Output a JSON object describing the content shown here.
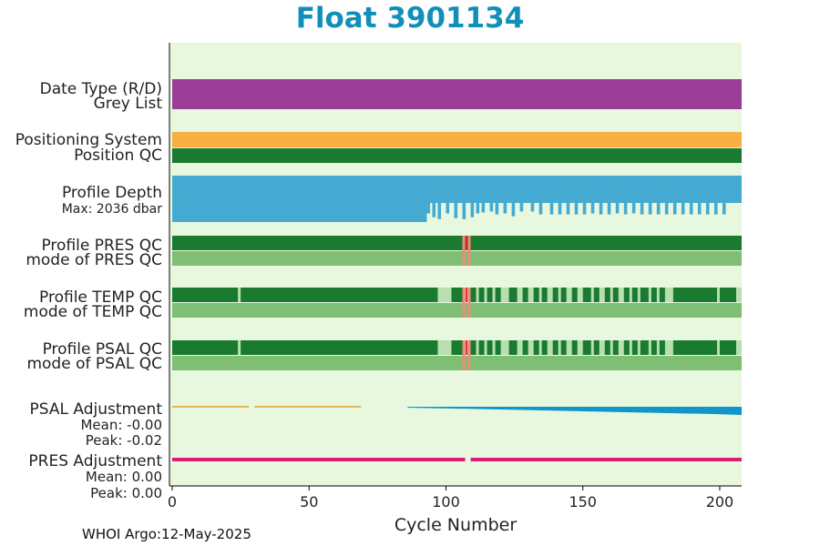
{
  "title": "Float 3901134",
  "footer": "WHOI Argo:12-May-2025",
  "chart_data": {
    "type": "qc-strip",
    "xlabel": "Cycle Number",
    "xlim": [
      -1,
      208
    ],
    "xticks": [
      0,
      50,
      100,
      150,
      200
    ],
    "colors": {
      "background": "#e7f8df",
      "purple": "#993d96",
      "orange": "#f8b042",
      "good": "#1a7a2f",
      "mode": "#7ebf73",
      "light": "#b8dfb0",
      "depth": "#44aad1",
      "bad": "#e8202a",
      "flagged": "#f08a78",
      "pink": "#dc1d74",
      "adjOrange": "#e8a030",
      "adjBlue": "#1096c8"
    },
    "rows": [
      {
        "label": "Date Type (R/D)",
        "color": "#993d96"
      },
      {
        "label": "Grey List",
        "color": ""
      },
      {
        "label": "Positioning System",
        "color": "#f8b042"
      },
      {
        "label": "Position QC",
        "color": "#1a7a2f"
      },
      {
        "label": "Profile Depth",
        "color": "#44aad1"
      },
      {
        "label": "Max: 2036 dbar",
        "color": "#118fb8"
      },
      {
        "label": "Profile PRES QC",
        "color": "#1a7a2f"
      },
      {
        "label": "mode of PRES QC",
        "color": "#7ebf73"
      },
      {
        "label": "Profile TEMP QC",
        "color": "#1a7a2f"
      },
      {
        "label": "mode of TEMP QC",
        "color": "#7ebf73"
      },
      {
        "label": "Profile PSAL QC",
        "color": "#1a7a2f"
      },
      {
        "label": "mode of PSAL QC",
        "color": "#7ebf73"
      }
    ],
    "psal_adjustment": {
      "label": "PSAL Adjustment",
      "mean": "Mean: -0.00",
      "peak": "Peak: -0.02"
    },
    "pres_adjustment": {
      "label": "PRES Adjustment",
      "mean": "Mean: 0.00",
      "peak": "Peak: 0.00"
    },
    "max_depth_dbar": 2036,
    "profile_depth": {
      "full": [
        [
          0,
          0
        ],
        [
          1,
          0
        ],
        [
          2,
          0.3
        ],
        [
          3,
          0.6
        ],
        [
          4,
          0.85
        ],
        [
          5,
          1
        ]
      ],
      "shallow_cycles": [
        94,
        95,
        96,
        97,
        98,
        99,
        100,
        101,
        102,
        103,
        104,
        105,
        106,
        107,
        108,
        109,
        110,
        111,
        112,
        113,
        114,
        115,
        116,
        117,
        118,
        119,
        120,
        121,
        122,
        123,
        124,
        125,
        126,
        127,
        128,
        129,
        130
      ],
      "notches": [
        [
          93,
          0.55
        ],
        [
          95,
          0.75
        ],
        [
          97,
          0.85
        ],
        [
          100,
          0.55
        ],
        [
          103,
          0.8
        ],
        [
          106,
          0.85
        ],
        [
          109,
          0.75
        ],
        [
          111,
          0.55
        ],
        [
          113,
          0.5
        ],
        [
          116,
          0.45
        ],
        [
          118,
          0.6
        ],
        [
          121,
          0.55
        ],
        [
          124,
          0.7
        ],
        [
          127,
          0.45
        ],
        [
          131,
          0.45
        ],
        [
          134,
          0.6
        ],
        [
          138,
          0.6
        ],
        [
          141,
          0.6
        ],
        [
          144,
          0.6
        ],
        [
          147,
          0.6
        ],
        [
          150,
          0.6
        ],
        [
          153,
          0.55
        ],
        [
          156,
          0.6
        ],
        [
          159,
          0.6
        ],
        [
          162,
          0.55
        ],
        [
          165,
          0.6
        ],
        [
          168,
          0.55
        ],
        [
          171,
          0.6
        ],
        [
          174,
          0.6
        ],
        [
          177,
          0.6
        ],
        [
          180,
          0.6
        ],
        [
          183,
          0.6
        ],
        [
          186,
          0.6
        ],
        [
          189,
          0.6
        ],
        [
          192,
          0.6
        ],
        [
          195,
          0.6
        ],
        [
          198,
          0.6
        ],
        [
          201,
          0.6
        ]
      ]
    },
    "pres_qc": {
      "bad_cycles": [
        107
      ],
      "flag_cycles": [
        106,
        108
      ]
    },
    "temp_qc": {
      "light_segments": [
        [
          24,
          25
        ],
        [
          97,
          102
        ],
        [
          106,
          109
        ],
        [
          111,
          112
        ],
        [
          114,
          115
        ],
        [
          117,
          118
        ],
        [
          120,
          123
        ],
        [
          126,
          128
        ],
        [
          130,
          132
        ],
        [
          134,
          135
        ],
        [
          137,
          139
        ],
        [
          141,
          142
        ],
        [
          144,
          146
        ],
        [
          148,
          150
        ],
        [
          153,
          154
        ],
        [
          156,
          158
        ],
        [
          160,
          161
        ],
        [
          163,
          165
        ],
        [
          167,
          168
        ],
        [
          170,
          171
        ],
        [
          174,
          175
        ],
        [
          177,
          178
        ],
        [
          180,
          183
        ],
        [
          199,
          200
        ],
        [
          206,
          208
        ]
      ],
      "bad_cycles": [
        107
      ],
      "flag_cycles": [
        106,
        108
      ]
    },
    "psal_qc": {
      "light_segments": [
        [
          24,
          25
        ],
        [
          97,
          102
        ],
        [
          106,
          109
        ],
        [
          111,
          112
        ],
        [
          114,
          115
        ],
        [
          117,
          118
        ],
        [
          120,
          123
        ],
        [
          126,
          128
        ],
        [
          130,
          132
        ],
        [
          134,
          135
        ],
        [
          137,
          139
        ],
        [
          141,
          142
        ],
        [
          144,
          146
        ],
        [
          148,
          150
        ],
        [
          153,
          154
        ],
        [
          156,
          158
        ],
        [
          160,
          161
        ],
        [
          163,
          165
        ],
        [
          167,
          168
        ],
        [
          170,
          171
        ],
        [
          174,
          175
        ],
        [
          177,
          178
        ],
        [
          180,
          183
        ],
        [
          199,
          200
        ],
        [
          206,
          208
        ]
      ],
      "bad_cycles": [
        107
      ],
      "flag_cycles": [
        106,
        108
      ]
    },
    "psal_adj_series": {
      "orange_segments": [
        [
          0,
          28
        ],
        [
          30,
          69
        ]
      ],
      "blue_start": 86,
      "blue_end": 208,
      "peak": -0.02
    },
    "pres_adj_series": {
      "segments": [
        [
          0,
          107
        ],
        [
          109,
          208
        ]
      ]
    }
  }
}
